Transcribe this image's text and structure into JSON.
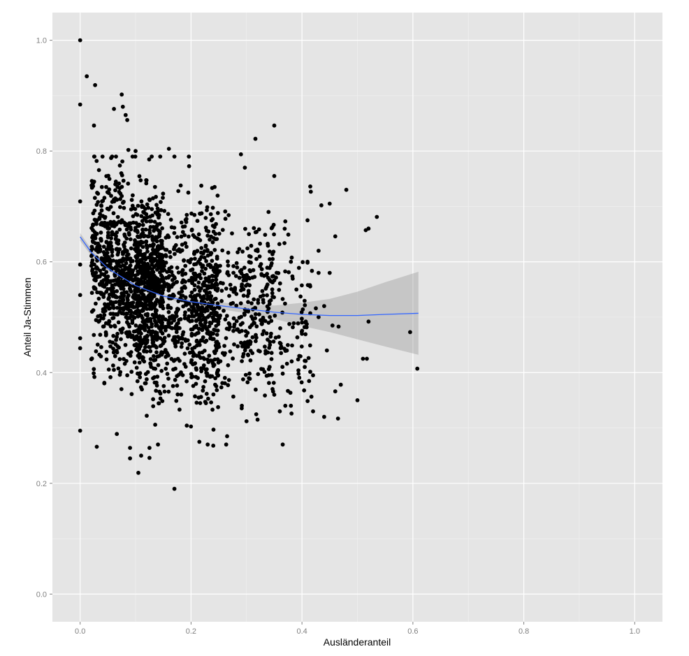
{
  "chart_data": {
    "type": "scatter",
    "title": "",
    "xlabel": "Ausländeranteil",
    "ylabel": "Anteil Ja-Stimmen",
    "xlim": [
      -0.05,
      1.05
    ],
    "ylim": [
      -0.05,
      1.05
    ],
    "x_ticks": [
      0.0,
      0.2,
      0.4,
      0.6,
      0.8,
      1.0
    ],
    "x_tick_labels": [
      "0.0",
      "0.2",
      "0.4",
      "0.6",
      "0.8",
      "1.0"
    ],
    "y_ticks": [
      0.0,
      0.2,
      0.4,
      0.6,
      0.8,
      1.0
    ],
    "y_tick_labels": [
      "0.0",
      "0.2",
      "0.4",
      "0.6",
      "0.8",
      "1.0"
    ],
    "grid": true,
    "legend": "none",
    "colors": {
      "panel": "#e5e5e5",
      "grid_major": "#ffffff",
      "grid_minor": "#f2f2f2",
      "points": "#000000",
      "smooth_line": "#3366ff",
      "confidence_band": "#999999"
    },
    "smooth": {
      "x": [
        0.0,
        0.02,
        0.05,
        0.1,
        0.15,
        0.2,
        0.25,
        0.3,
        0.35,
        0.4,
        0.45,
        0.5,
        0.55,
        0.61
      ],
      "y": [
        0.645,
        0.617,
        0.588,
        0.557,
        0.538,
        0.528,
        0.521,
        0.515,
        0.509,
        0.505,
        0.503,
        0.503,
        0.505,
        0.507
      ],
      "ymin": [
        0.638,
        0.611,
        0.584,
        0.553,
        0.534,
        0.523,
        0.515,
        0.507,
        0.497,
        0.484,
        0.473,
        0.46,
        0.447,
        0.432
      ],
      "ymax": [
        0.652,
        0.623,
        0.592,
        0.561,
        0.542,
        0.533,
        0.527,
        0.523,
        0.521,
        0.526,
        0.533,
        0.546,
        0.563,
        0.582
      ]
    },
    "series": [
      {
        "points": [
          [
            0.0,
            1.0
          ],
          [
            0.0,
            0.884
          ],
          [
            0.012,
            0.935
          ],
          [
            0.027,
            0.919
          ],
          [
            0.075,
            0.902
          ],
          [
            0.061,
            0.876
          ],
          [
            0.077,
            0.88
          ],
          [
            0.082,
            0.865
          ],
          [
            0.085,
            0.856
          ],
          [
            0.025,
            0.846
          ],
          [
            0.35,
            0.846
          ],
          [
            0.316,
            0.822
          ],
          [
            0.087,
            0.802
          ],
          [
            0.1,
            0.8
          ],
          [
            0.16,
            0.804
          ],
          [
            0.17,
            0.79
          ],
          [
            0.29,
            0.794
          ],
          [
            0.297,
            0.77
          ],
          [
            0.415,
            0.736
          ],
          [
            0.48,
            0.73
          ],
          [
            0.535,
            0.681
          ],
          [
            0.52,
            0.66
          ],
          [
            0.515,
            0.657
          ],
          [
            0.46,
            0.646
          ],
          [
            0.45,
            0.705
          ],
          [
            0.435,
            0.702
          ],
          [
            0.41,
            0.675
          ],
          [
            0.37,
            0.673
          ],
          [
            0.35,
            0.755
          ],
          [
            0.0,
            0.709
          ],
          [
            0.0,
            0.595
          ],
          [
            0.0,
            0.54
          ],
          [
            0.0,
            0.462
          ],
          [
            0.0,
            0.444
          ],
          [
            0.0,
            0.295
          ],
          [
            0.03,
            0.266
          ],
          [
            0.09,
            0.264
          ],
          [
            0.09,
            0.245
          ],
          [
            0.11,
            0.25
          ],
          [
            0.125,
            0.264
          ],
          [
            0.125,
            0.246
          ],
          [
            0.105,
            0.219
          ],
          [
            0.17,
            0.19
          ],
          [
            0.215,
            0.275
          ],
          [
            0.23,
            0.27
          ],
          [
            0.24,
            0.268
          ],
          [
            0.265,
            0.285
          ],
          [
            0.3,
            0.312
          ],
          [
            0.32,
            0.315
          ],
          [
            0.36,
            0.33
          ],
          [
            0.42,
            0.33
          ],
          [
            0.44,
            0.32
          ],
          [
            0.465,
            0.317
          ],
          [
            0.5,
            0.35
          ],
          [
            0.46,
            0.366
          ],
          [
            0.47,
            0.378
          ],
          [
            0.445,
            0.44
          ],
          [
            0.455,
            0.485
          ],
          [
            0.466,
            0.483
          ],
          [
            0.51,
            0.425
          ],
          [
            0.517,
            0.425
          ],
          [
            0.52,
            0.492
          ],
          [
            0.595,
            0.473
          ],
          [
            0.608,
            0.407
          ],
          [
            0.42,
            0.395
          ],
          [
            0.43,
            0.5
          ],
          [
            0.425,
            0.516
          ],
          [
            0.44,
            0.52
          ],
          [
            0.43,
            0.58
          ],
          [
            0.45,
            0.58
          ],
          [
            0.41,
            0.6
          ],
          [
            0.43,
            0.62
          ],
          [
            0.38,
            0.6
          ],
          [
            0.39,
            0.55
          ],
          [
            0.4,
            0.47
          ],
          [
            0.395,
            0.43
          ],
          [
            0.405,
            0.41
          ],
          [
            0.38,
            0.34
          ],
          [
            0.37,
            0.34
          ],
          [
            0.35,
            0.36
          ]
        ]
      }
    ]
  }
}
